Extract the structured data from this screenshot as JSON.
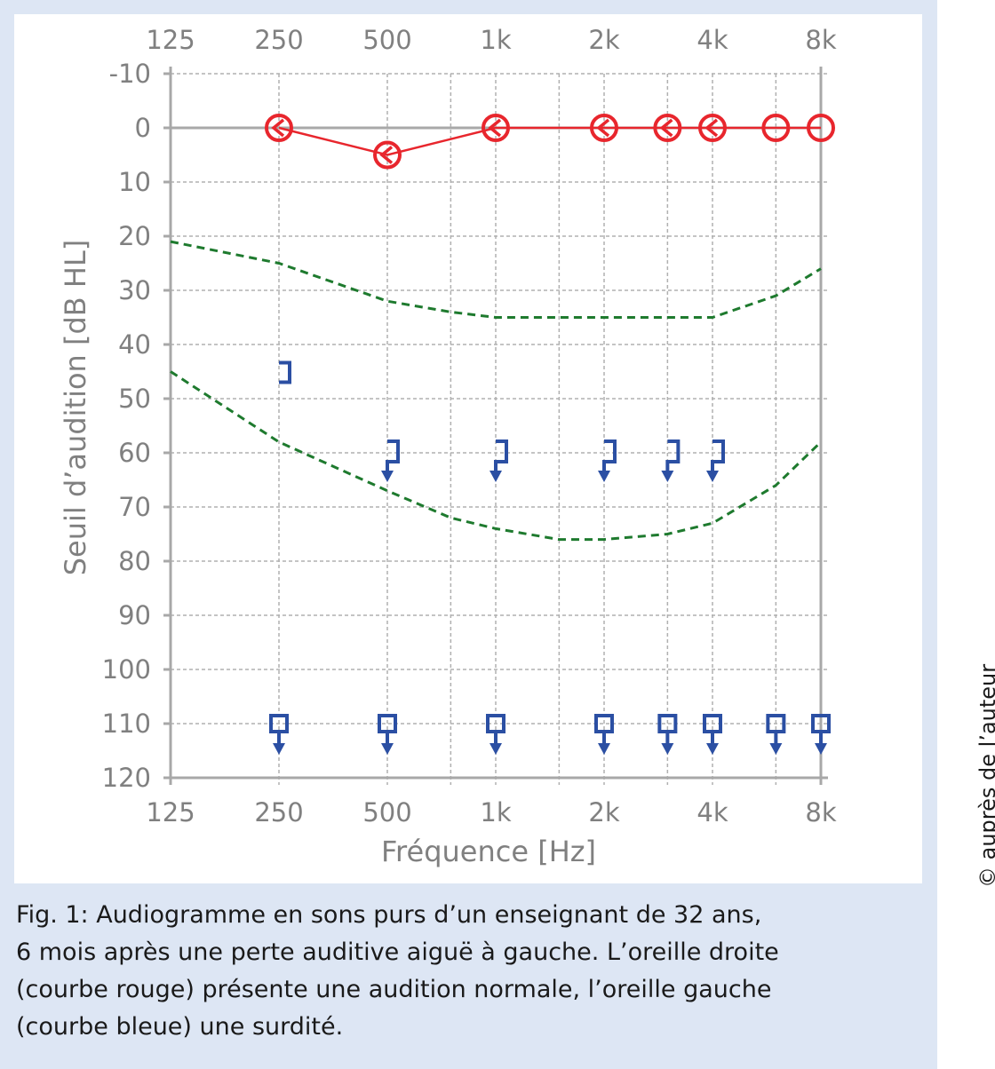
{
  "chart_data": {
    "type": "line",
    "title": "",
    "xlabel": "Fréquence [Hz]",
    "ylabel": "Seuil d’audition [dB HL]",
    "x_scale": "log2",
    "x_ticks": [
      125,
      250,
      500,
      1000,
      2000,
      4000,
      8000
    ],
    "x_tick_labels": [
      "125",
      "250",
      "500",
      "1k",
      "2k",
      "4k",
      "8k"
    ],
    "x_minor_grid": [
      750,
      1500,
      3000,
      6000
    ],
    "ylim": [
      -10,
      120
    ],
    "y_inverted": true,
    "y_ticks": [
      -10,
      0,
      10,
      20,
      30,
      40,
      50,
      60,
      70,
      80,
      90,
      100,
      110,
      120
    ],
    "y_tick_labels": [
      "-10",
      "0",
      "10",
      "20",
      "30",
      "40",
      "50",
      "60",
      "70",
      "80",
      "90",
      "100",
      "110",
      "120"
    ],
    "grid": true,
    "series": [
      {
        "name": "right-ear-air",
        "color": "#e8262d",
        "marker": "circle",
        "line": "solid",
        "x": [
          250,
          500,
          1000,
          2000,
          3000,
          4000,
          6000,
          8000
        ],
        "y": [
          0,
          5,
          0,
          0,
          0,
          0,
          0,
          0
        ]
      },
      {
        "name": "right-ear-bone",
        "color": "#e8262d",
        "marker": "less-than",
        "line": "none",
        "x": [
          250,
          500,
          1000,
          2000,
          3000,
          4000
        ],
        "y": [
          0,
          5,
          0,
          0,
          0,
          0
        ]
      },
      {
        "name": "left-ear-bone-masked",
        "color": "#2b4fa3",
        "marker": "bracket-right",
        "line": "none",
        "x": [
          250
        ],
        "y": [
          45
        ]
      },
      {
        "name": "left-ear-bone-masked-no-response",
        "color": "#2b4fa3",
        "marker": "bracket-right-arrow",
        "line": "none",
        "x": [
          500,
          1000,
          2000,
          3000,
          4000
        ],
        "y": [
          60,
          60,
          60,
          60,
          60
        ]
      },
      {
        "name": "left-ear-air-masked-no-response",
        "color": "#2b4fa3",
        "marker": "square-arrow",
        "line": "none",
        "x": [
          250,
          500,
          1000,
          2000,
          3000,
          4000,
          6000,
          8000
        ],
        "y": [
          110,
          110,
          110,
          110,
          110,
          110,
          110,
          110
        ]
      },
      {
        "name": "reference-upper",
        "color": "#1e7a2e",
        "marker": "none",
        "line": "dashed",
        "x": [
          125,
          250,
          500,
          750,
          1000,
          2000,
          3000,
          4000,
          6000,
          8000
        ],
        "y": [
          21,
          25,
          32,
          34,
          35,
          35,
          35,
          35,
          31,
          26
        ]
      },
      {
        "name": "reference-lower",
        "color": "#1e7a2e",
        "marker": "none",
        "line": "dashed",
        "x": [
          125,
          250,
          500,
          750,
          1000,
          1500,
          2000,
          3000,
          4000,
          6000,
          8000
        ],
        "y": [
          45,
          58,
          67,
          72,
          74,
          76,
          76,
          75,
          73,
          66,
          58
        ]
      }
    ]
  },
  "caption": {
    "lines": [
      "Fig. 1: Audiogramme en sons purs d’un enseignant de 32 ans,",
      "6 mois après une perte auditive aiguë à gauche. L’oreille droite",
      "(courbe rouge) présente une audition normale, l’oreille gauche",
      "(courbe bleue) une surdité."
    ]
  },
  "credit": "© auprès de l’auteur"
}
